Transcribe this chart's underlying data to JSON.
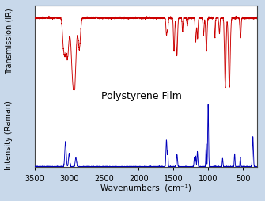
{
  "xlabel": "Wavenumbers  (cm⁻¹)",
  "ylabel_ir": "Transmission (IR)",
  "ylabel_raman": "Intensity (Raman)",
  "xmin": 3500,
  "xmax": 300,
  "background_color": "#c8d8ea",
  "plot_bg_color": "#ffffff",
  "ir_color": "#cc0000",
  "raman_color": "#0000bb",
  "annotation": "Polystyrene Film",
  "figsize": [
    3.35,
    2.55
  ],
  "dpi": 100
}
